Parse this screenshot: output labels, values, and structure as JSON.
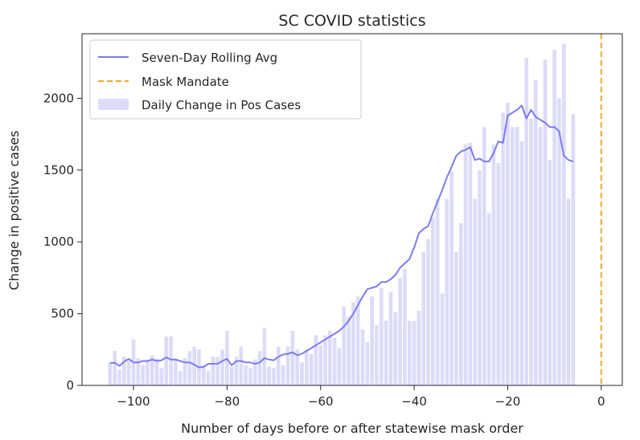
{
  "chart_data": {
    "type": "bar",
    "title": "SC COVID statistics",
    "xlabel": "Number of days before or after statewise mask order",
    "ylabel": "Change in positive cases",
    "xlim": [
      -111,
      4.5
    ],
    "ylim": [
      0,
      2450
    ],
    "xticks": [
      -100,
      -80,
      -60,
      -40,
      -20,
      0
    ],
    "yticks": [
      0,
      500,
      1000,
      1500,
      2000
    ],
    "grid": false,
    "legend_position": "top-left",
    "colors": {
      "bars": "#dcdcf8",
      "rolling": "#7b7bf2",
      "mandate": "#f5a623",
      "axes": "#262626"
    },
    "series": [
      {
        "name": "Daily Change in Pos Cases",
        "type": "bar",
        "x": [
          -105,
          -104,
          -103,
          -102,
          -101,
          -100,
          -99,
          -98,
          -97,
          -96,
          -95,
          -94,
          -93,
          -92,
          -91,
          -90,
          -89,
          -88,
          -87,
          -86,
          -85,
          -84,
          -83,
          -82,
          -81,
          -80,
          -79,
          -78,
          -77,
          -76,
          -75,
          -74,
          -73,
          -72,
          -71,
          -70,
          -69,
          -68,
          -67,
          -66,
          -65,
          -64,
          -63,
          -62,
          -61,
          -60,
          -59,
          -58,
          -57,
          -56,
          -55,
          -54,
          -53,
          -52,
          -51,
          -50,
          -49,
          -48,
          -47,
          -46,
          -45,
          -44,
          -43,
          -42,
          -41,
          -40,
          -39,
          -38,
          -37,
          -36,
          -35,
          -34,
          -33,
          -32,
          -31,
          -30,
          -29,
          -28,
          -27,
          -26,
          -25,
          -24,
          -23,
          -22,
          -21,
          -20,
          -19,
          -18,
          -17,
          -16,
          -15,
          -14,
          -13,
          -12,
          -11,
          -10,
          -9,
          -8,
          -7,
          -6
        ],
        "values": [
          160,
          240,
          110,
          200,
          170,
          320,
          190,
          140,
          180,
          210,
          190,
          120,
          340,
          340,
          190,
          100,
          190,
          240,
          270,
          250,
          130,
          100,
          200,
          200,
          250,
          380,
          130,
          200,
          270,
          140,
          120,
          180,
          240,
          400,
          130,
          120,
          270,
          140,
          270,
          380,
          250,
          160,
          250,
          220,
          350,
          280,
          350,
          380,
          330,
          260,
          550,
          480,
          580,
          620,
          390,
          300,
          620,
          420,
          680,
          450,
          650,
          510,
          750,
          810,
          450,
          450,
          520,
          930,
          1020,
          1170,
          1300,
          640,
          1300,
          1490,
          930,
          1130,
          1680,
          1690,
          1300,
          1500,
          1800,
          1200,
          1680,
          1550,
          1900,
          1970,
          1800,
          1800,
          1700,
          2280,
          1860,
          2130,
          1800,
          2270,
          1570,
          2340,
          2000,
          2380,
          1300,
          1890
        ]
      },
      {
        "name": "Seven-Day Rolling Avg",
        "type": "line",
        "x": [
          -105,
          -104,
          -103,
          -102,
          -101,
          -100,
          -99,
          -98,
          -97,
          -96,
          -95,
          -94,
          -93,
          -92,
          -91,
          -90,
          -89,
          -88,
          -87,
          -86,
          -85,
          -84,
          -83,
          -82,
          -81,
          -80,
          -79,
          -78,
          -77,
          -76,
          -75,
          -74,
          -73,
          -72,
          -71,
          -70,
          -69,
          -68,
          -67,
          -66,
          -65,
          -64,
          -63,
          -62,
          -61,
          -60,
          -59,
          -58,
          -57,
          -56,
          -55,
          -54,
          -53,
          -52,
          -51,
          -50,
          -49,
          -48,
          -47,
          -46,
          -45,
          -44,
          -43,
          -42,
          -41,
          -40,
          -39,
          -38,
          -37,
          -36,
          -35,
          -34,
          -33,
          -32,
          -31,
          -30,
          -29,
          -28,
          -27,
          -26,
          -25,
          -24,
          -23,
          -22,
          -21,
          -20,
          -19,
          -18,
          -17,
          -16,
          -15,
          -14,
          -13,
          -12,
          -11,
          -10,
          -9,
          -8,
          -7,
          -6
        ],
        "values": [
          155,
          158,
          135,
          165,
          185,
          160,
          160,
          170,
          170,
          180,
          170,
          175,
          195,
          180,
          180,
          170,
          160,
          160,
          145,
          125,
          130,
          150,
          150,
          150,
          170,
          185,
          140,
          170,
          170,
          160,
          160,
          150,
          160,
          190,
          180,
          175,
          200,
          215,
          220,
          230,
          210,
          220,
          240,
          260,
          280,
          300,
          320,
          340,
          360,
          380,
          410,
          450,
          500,
          560,
          620,
          670,
          680,
          690,
          720,
          720,
          740,
          770,
          820,
          850,
          880,
          960,
          1060,
          1090,
          1110,
          1200,
          1280,
          1360,
          1450,
          1520,
          1600,
          1630,
          1640,
          1660,
          1570,
          1580,
          1560,
          1560,
          1620,
          1700,
          1690,
          1880,
          1900,
          1920,
          1950,
          1860,
          1920,
          1870,
          1850,
          1830,
          1800,
          1800,
          1770,
          1600,
          1570,
          1560
        ]
      },
      {
        "name": "Mask Mandate",
        "type": "vline",
        "x": 0
      }
    ]
  }
}
